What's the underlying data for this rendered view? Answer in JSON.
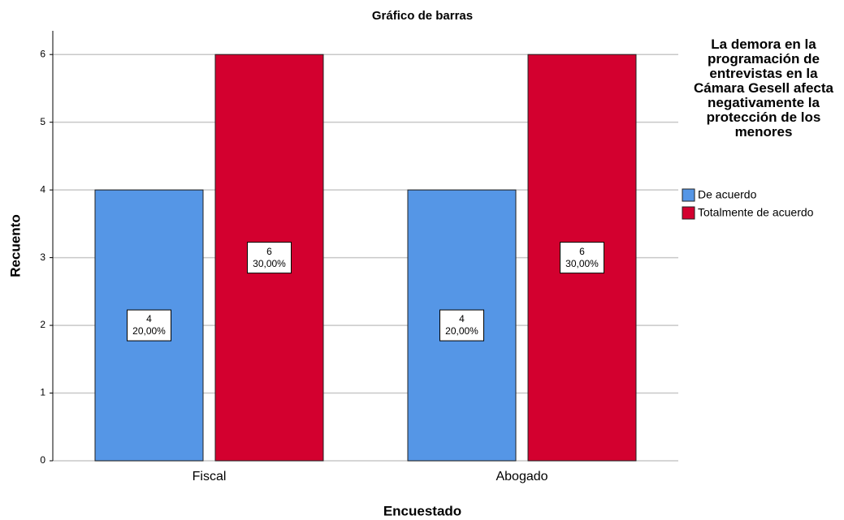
{
  "chart_data": {
    "type": "bar",
    "title": "Gráfico de barras",
    "x_label": "Encuestado",
    "y_label": "Recuento",
    "legend_title": "La demora en la programación de entrevistas en la Cámara Gesell afecta negativamente la protección de los menores",
    "categories": [
      "Fiscal",
      "Abogado"
    ],
    "series": [
      {
        "name": "De acuerdo",
        "color": "#5596e6",
        "values": [
          4,
          4
        ],
        "percent_labels": [
          "20,00%",
          "20,00%"
        ]
      },
      {
        "name": "Totalmente de acuerdo",
        "color": "#d3002f",
        "values": [
          6,
          6
        ],
        "percent_labels": [
          "30,00%",
          "30,00%"
        ]
      }
    ],
    "ylim": [
      0,
      6.35
    ],
    "yticks": [
      0,
      1,
      2,
      3,
      4,
      5,
      6
    ],
    "grid": true,
    "legend": "right"
  }
}
